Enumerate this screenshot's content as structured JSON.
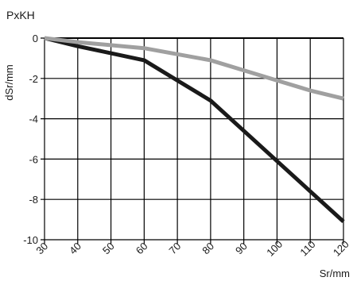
{
  "chart_data": {
    "type": "line",
    "title": "PxKH",
    "xlabel": "Sr/mm",
    "ylabel": "dSr/mm",
    "xlim": [
      30,
      120
    ],
    "ylim": [
      -10,
      0
    ],
    "grid": true,
    "legend": "none",
    "x_ticks": [
      30,
      40,
      50,
      60,
      70,
      80,
      90,
      100,
      110,
      120
    ],
    "y_ticks": [
      0,
      -2,
      -4,
      -6,
      -8,
      -10
    ],
    "series": [
      {
        "color": "#1a1a1a",
        "x": [
          30,
          40,
          60,
          70,
          80,
          90,
          100,
          110,
          120
        ],
        "y": [
          0,
          -0.4,
          -1.1,
          -2.1,
          -3.1,
          -4.6,
          -6.1,
          -7.6,
          -9.1
        ]
      },
      {
        "color": "#a0a0a0",
        "x": [
          30,
          40,
          60,
          70,
          80,
          90,
          100,
          110,
          120
        ],
        "y": [
          0,
          -0.2,
          -0.5,
          -0.8,
          -1.1,
          -1.6,
          -2.1,
          -2.6,
          -3.0
        ]
      }
    ]
  }
}
